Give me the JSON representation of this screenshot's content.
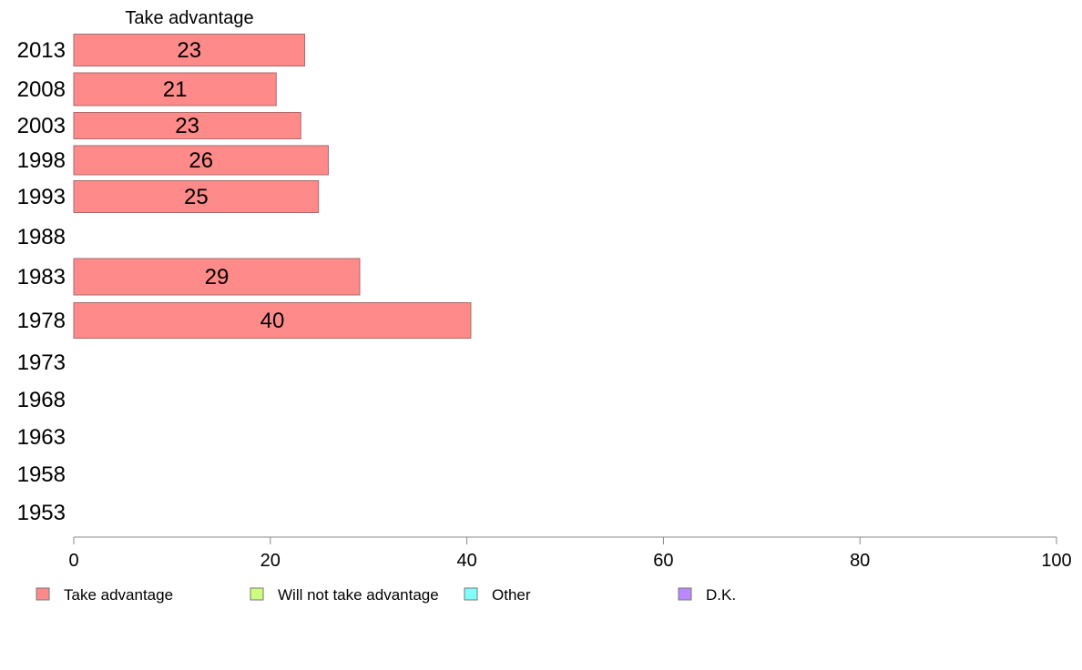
{
  "chart_data": {
    "type": "bar",
    "orientation": "horizontal",
    "column_header": "Take advantage",
    "categories": [
      "2013",
      "2008",
      "2003",
      "1998",
      "1993",
      "1988",
      "1983",
      "1978",
      "1973",
      "1968",
      "1963",
      "1958",
      "1953"
    ],
    "series": [
      {
        "name": "Take advantage",
        "color": "#ff8a8a",
        "values": [
          23.5,
          20.6,
          23.1,
          25.9,
          24.9,
          null,
          29.1,
          40.4,
          null,
          null,
          null,
          null,
          null
        ],
        "labels": [
          "23",
          "21",
          "23",
          "26",
          "25",
          "",
          "29",
          "40",
          "",
          "",
          "",
          "",
          ""
        ]
      },
      {
        "name": "Will not take advantage",
        "color": "#ccff80",
        "values": [
          null,
          null,
          null,
          null,
          null,
          null,
          null,
          null,
          null,
          null,
          null,
          null,
          null
        ]
      },
      {
        "name": "Other",
        "color": "#80ffff",
        "values": [
          null,
          null,
          null,
          null,
          null,
          null,
          null,
          null,
          null,
          null,
          null,
          null,
          null
        ]
      },
      {
        "name": "D.K.",
        "color": "#bb88ff",
        "values": [
          null,
          null,
          null,
          null,
          null,
          null,
          null,
          null,
          null,
          null,
          null,
          null,
          null
        ]
      }
    ],
    "xlim": [
      0,
      100
    ],
    "xticks": [
      "0",
      "20",
      "40",
      "60",
      "80",
      "100"
    ],
    "xlabel": "",
    "ylabel": "",
    "grid": false,
    "legend_position": "bottom"
  }
}
